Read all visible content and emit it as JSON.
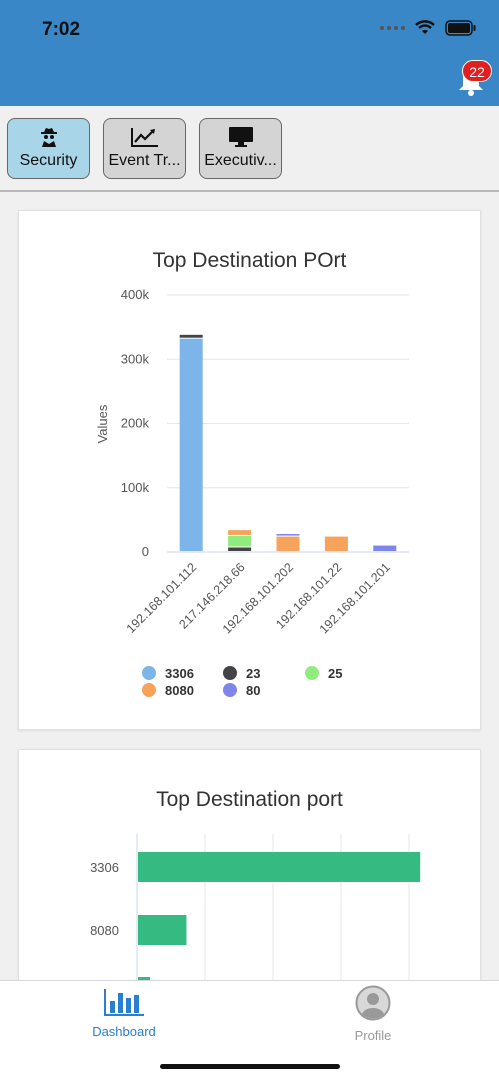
{
  "status": {
    "time": "7:02"
  },
  "header": {
    "notification_count": "22",
    "bell_icon": "bell-icon",
    "accent_color": "#3a87c8"
  },
  "tabs": [
    {
      "label": "Security",
      "icon": "spy-icon",
      "active": true
    },
    {
      "label": "Event Tr...",
      "icon": "line-chart-icon",
      "active": false
    },
    {
      "label": "Executiv...",
      "icon": "monitor-icon",
      "active": false
    }
  ],
  "chart1": {
    "title": "Top Destination POrt"
  },
  "chart2": {
    "title": "Top Destination port"
  },
  "footer": {
    "tabs": [
      {
        "label": "Dashboard",
        "icon": "bar-chart-icon",
        "active": true
      },
      {
        "label": "Profile",
        "icon": "user-icon",
        "active": false
      }
    ]
  },
  "chart_data": [
    {
      "type": "bar",
      "stacked": true,
      "title": "Top Destination POrt",
      "ylabel": "Values",
      "xlabel": "",
      "ylim": [
        0,
        400000
      ],
      "yticks": [
        "0",
        "100k",
        "200k",
        "300k",
        "400k"
      ],
      "categories": [
        "192.168.101.112",
        "217.146.218.66",
        "192.168.101.202",
        "192.168.101.22",
        "192.168.101.201"
      ],
      "series": [
        {
          "name": "3306",
          "color": "#7db5ea",
          "values": [
            332000,
            0,
            0,
            0,
            0
          ]
        },
        {
          "name": "23",
          "color": "#434348",
          "values": [
            6000,
            7000,
            0,
            0,
            0
          ]
        },
        {
          "name": "25",
          "color": "#90ed7d",
          "values": [
            0,
            18000,
            0,
            0,
            0
          ]
        },
        {
          "name": "8080",
          "color": "#f7a35c",
          "values": [
            0,
            9000,
            24000,
            24000,
            0
          ]
        },
        {
          "name": "80",
          "color": "#8085e9",
          "values": [
            0,
            0,
            4000,
            0,
            10000
          ]
        }
      ],
      "legend_position": "bottom",
      "grid": true
    },
    {
      "type": "bar",
      "orientation": "horizontal",
      "title": "Top Destination port",
      "categories": [
        "3306",
        "8080"
      ],
      "values": [
        332000,
        57000
      ],
      "color": "#35bb81",
      "xlim": [
        0,
        400000
      ],
      "grid": true
    }
  ]
}
